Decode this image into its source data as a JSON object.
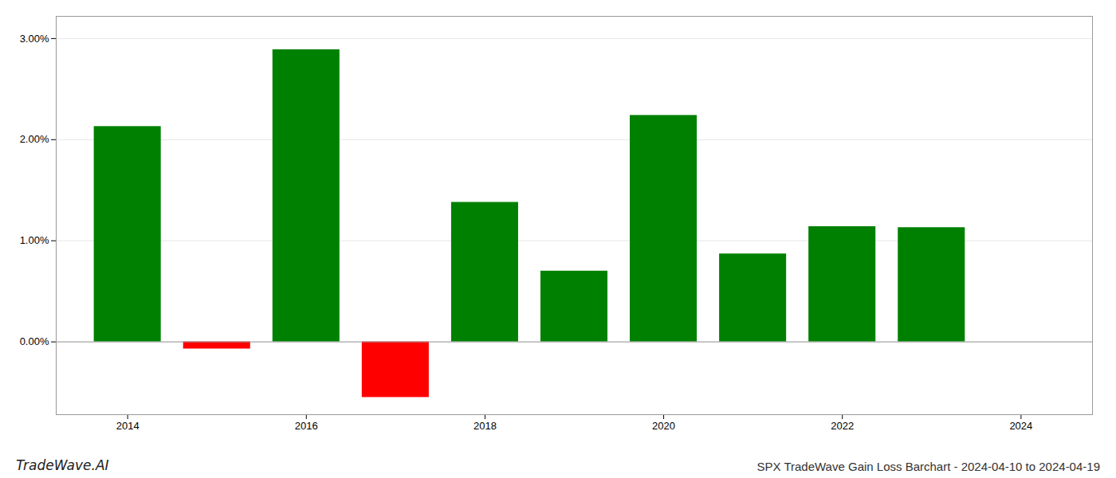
{
  "chart_data": {
    "type": "bar",
    "title": "SPX TradeWave Gain Loss Barchart - 2024-04-10 to 2024-04-19",
    "annotations": [
      "TradeWave.AI"
    ],
    "x": [
      2014,
      2015,
      2016,
      2017,
      2018,
      2019,
      2020,
      2021,
      2022,
      2023
    ],
    "values": [
      2.13,
      -0.07,
      2.89,
      -0.55,
      1.38,
      0.7,
      2.24,
      0.87,
      1.14,
      1.13
    ],
    "colors": [
      "#008000",
      "#ff0000",
      "#008000",
      "#ff0000",
      "#008000",
      "#008000",
      "#008000",
      "#008000",
      "#008000",
      "#008000"
    ],
    "xlim": [
      2013.2,
      2024.8
    ],
    "xticks": [
      2014,
      2016,
      2018,
      2020,
      2022,
      2024
    ],
    "ylim": [
      -0.72,
      3.22
    ],
    "yticks": [
      {
        "value": 0.0,
        "label": "0.00%"
      },
      {
        "value": 1.0,
        "label": "1.00%"
      },
      {
        "value": 2.0,
        "label": "2.00%"
      },
      {
        "value": 3.0,
        "label": "3.00%"
      }
    ],
    "grid": true
  }
}
